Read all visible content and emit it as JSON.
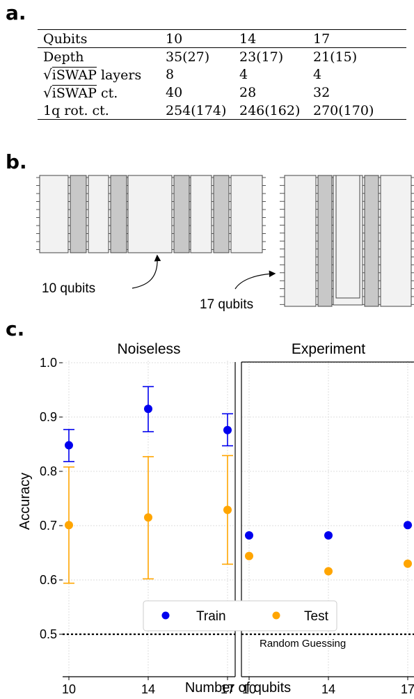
{
  "panels": {
    "a": "a.",
    "b": "b.",
    "c": "c."
  },
  "table": {
    "headers": [
      "Qubits",
      "10",
      "14",
      "17"
    ],
    "rows": [
      {
        "label": "Depth",
        "values": [
          "35(27)",
          "23(17)",
          "21(15)"
        ]
      },
      {
        "label_sqrt": "iSWAP",
        "label_suffix": " layers",
        "values": [
          "8",
          "4",
          "4"
        ]
      },
      {
        "label_sqrt": "iSWAP",
        "label_suffix": " ct.",
        "values": [
          "40",
          "28",
          "32"
        ]
      },
      {
        "label": "1q rot. ct.",
        "values": [
          "254(174)",
          "246(162)",
          "270(170)"
        ]
      }
    ]
  },
  "circuits": {
    "label_10": "10 qubits",
    "label_17": "17 qubits",
    "colors": {
      "single": "#f2f2f2",
      "entangle": "#c8c8c8"
    }
  },
  "chart_data": {
    "type": "scatter",
    "subplots": [
      {
        "title": "Noiseless",
        "x": [
          10,
          14,
          17
        ],
        "xticks": [
          "10",
          "14",
          "17"
        ],
        "series": [
          {
            "name": "Train",
            "color": "#0000ee",
            "values": [
              0.848,
              0.915,
              0.876
            ],
            "err_low": [
              0.818,
              0.873,
              0.847
            ],
            "err_high": [
              0.877,
              0.956,
              0.906
            ]
          },
          {
            "name": "Test",
            "color": "#ffa500",
            "values": [
              0.701,
              0.715,
              0.729
            ],
            "err_low": [
              0.594,
              0.602,
              0.629
            ],
            "err_high": [
              0.808,
              0.827,
              0.829
            ]
          }
        ]
      },
      {
        "title": "Experiment",
        "x": [
          10,
          14,
          17
        ],
        "xticks": [
          "10",
          "14",
          "17"
        ],
        "series": [
          {
            "name": "Train",
            "color": "#0000ee",
            "values": [
              0.682,
              0.682,
              0.701
            ]
          },
          {
            "name": "Test",
            "color": "#ffa500",
            "values": [
              0.644,
              0.616,
              0.63
            ]
          }
        ]
      }
    ],
    "ylabel": "Accuracy",
    "xlabel": "Number of qubits",
    "ylim": [
      0.5,
      1.0
    ],
    "yticks": [
      "0.5",
      "0.6",
      "0.7",
      "0.8",
      "0.9",
      "1.0"
    ],
    "reference_line": {
      "value": 0.5,
      "label": "Random Guessing"
    },
    "legend": {
      "entries": [
        "Train",
        "Test"
      ],
      "placement": "lower-center"
    },
    "grid": true
  }
}
